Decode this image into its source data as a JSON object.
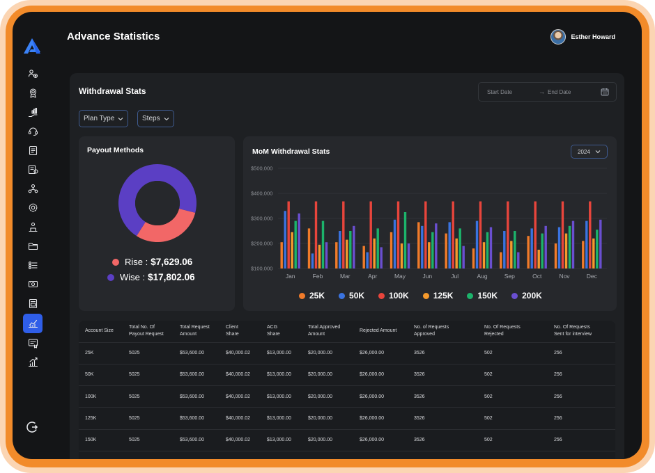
{
  "header": {
    "title": "Advance Statistics",
    "user_name": "Esther Howard"
  },
  "sidebar": {
    "items": [
      {
        "icon": "users-settings-icon",
        "active": false
      },
      {
        "icon": "award-badge-icon",
        "active": false
      },
      {
        "icon": "hand-chart-icon",
        "active": false
      },
      {
        "icon": "support-headset-icon",
        "active": false
      },
      {
        "icon": "document-list-icon",
        "active": false
      },
      {
        "icon": "report-document-icon",
        "active": false
      },
      {
        "icon": "team-network-icon",
        "active": false
      },
      {
        "icon": "gear-group-icon",
        "active": false
      },
      {
        "icon": "trophy-user-icon",
        "active": false
      },
      {
        "icon": "folder-icon",
        "active": false
      },
      {
        "icon": "checklist-icon",
        "active": false
      },
      {
        "icon": "money-bill-icon",
        "active": false
      },
      {
        "icon": "invoice-icon",
        "active": false
      },
      {
        "icon": "statistics-chart-icon",
        "active": true
      },
      {
        "icon": "certificate-icon",
        "active": false
      },
      {
        "icon": "growth-chart-icon",
        "active": false
      }
    ],
    "logout_icon": "logout-icon"
  },
  "panel": {
    "title": "Withdrawal Stats",
    "date_start_placeholder": "Start Date",
    "date_end_placeholder": "End Date",
    "filters": [
      "Plan Type",
      "Steps"
    ]
  },
  "payout": {
    "title": "Payout Methods",
    "items": [
      {
        "label": "Rise :",
        "value": "$7,629.06",
        "color": "#f26767"
      },
      {
        "label": "Wise :",
        "value": "$17,802.06",
        "color": "#5b3fc4"
      }
    ]
  },
  "mom": {
    "title": "MoM Withdrawal Stats",
    "year": "2024"
  },
  "chart_data": [
    {
      "type": "pie",
      "title": "Payout Methods",
      "categories": [
        "Rise",
        "Wise"
      ],
      "values": [
        7629.06,
        17802.06
      ],
      "colors": [
        "#f26767",
        "#5b3fc4"
      ]
    },
    {
      "type": "bar",
      "title": "MoM Withdrawal Stats",
      "categories": [
        "Jan",
        "Feb",
        "Mar",
        "Apr",
        "May",
        "Jun",
        "Jul",
        "Aug",
        "Sep",
        "Oct",
        "Nov",
        "Dec"
      ],
      "yticks": [
        "$100,000",
        "$200,000",
        "$300,000",
        "$400,000",
        "$500,000"
      ],
      "ylim": [
        100000,
        500000
      ],
      "series": [
        {
          "name": "25K",
          "color": "#f07b2a",
          "values": [
            205000,
            260000,
            205000,
            190000,
            245000,
            285000,
            240000,
            180000,
            165000,
            230000,
            200000,
            210000
          ]
        },
        {
          "name": "50K",
          "color": "#3a73e0",
          "values": [
            330000,
            160000,
            250000,
            165000,
            295000,
            270000,
            285000,
            290000,
            250000,
            260000,
            265000,
            290000
          ]
        },
        {
          "name": "100K",
          "color": "#e8453c",
          "values": [
            368000,
            368000,
            368000,
            368000,
            368000,
            368000,
            368000,
            368000,
            368000,
            368000,
            368000,
            368000
          ]
        },
        {
          "name": "125K",
          "color": "#f59a2c",
          "values": [
            245000,
            195000,
            215000,
            220000,
            200000,
            205000,
            220000,
            205000,
            210000,
            175000,
            240000,
            220000
          ]
        },
        {
          "name": "150K",
          "color": "#1cb36b",
          "values": [
            290000,
            290000,
            250000,
            260000,
            325000,
            245000,
            260000,
            245000,
            250000,
            240000,
            270000,
            255000
          ]
        },
        {
          "name": "200K",
          "color": "#6a4fd0",
          "values": [
            320000,
            205000,
            270000,
            185000,
            200000,
            280000,
            190000,
            265000,
            165000,
            270000,
            290000,
            295000
          ]
        }
      ]
    }
  ],
  "table": {
    "headers": [
      [
        "Account Size"
      ],
      [
        "Total No. Of",
        "Payout Request"
      ],
      [
        "Total Request",
        "Amount"
      ],
      [
        "Client",
        "Share"
      ],
      [
        "ACG",
        "Share"
      ],
      [
        "Total Approved",
        "Amount"
      ],
      [
        "Rejected Amount"
      ],
      [
        "No. of Requests",
        "Approved"
      ],
      [
        "No. Of Requests",
        "Rejected"
      ],
      [
        "No. Of Requests",
        "Sent for interview"
      ]
    ],
    "rows": [
      [
        "25K",
        "5025",
        "$53,600.00",
        "$40,000.02",
        "$13,000.00",
        "$20,000.00",
        "$26,000.00",
        "3526",
        "502",
        "256"
      ],
      [
        "50K",
        "5025",
        "$53,600.00",
        "$40,000.02",
        "$13,000.00",
        "$20,000.00",
        "$26,000.00",
        "3526",
        "502",
        "256"
      ],
      [
        "100K",
        "5025",
        "$53,600.00",
        "$40,000.02",
        "$13,000.00",
        "$20,000.00",
        "$26,000.00",
        "3526",
        "502",
        "256"
      ],
      [
        "125K",
        "5025",
        "$53,600.00",
        "$40,000.02",
        "$13,000.00",
        "$20,000.00",
        "$26,000.00",
        "3526",
        "502",
        "256"
      ],
      [
        "150K",
        "5025",
        "$53,600.00",
        "$40,000.02",
        "$13,000.00",
        "$20,000.00",
        "$26,000.00",
        "3526",
        "502",
        "256"
      ],
      [
        "",
        "",
        "",
        "",
        "",
        "",
        "",
        "",
        "",
        ""
      ]
    ]
  }
}
